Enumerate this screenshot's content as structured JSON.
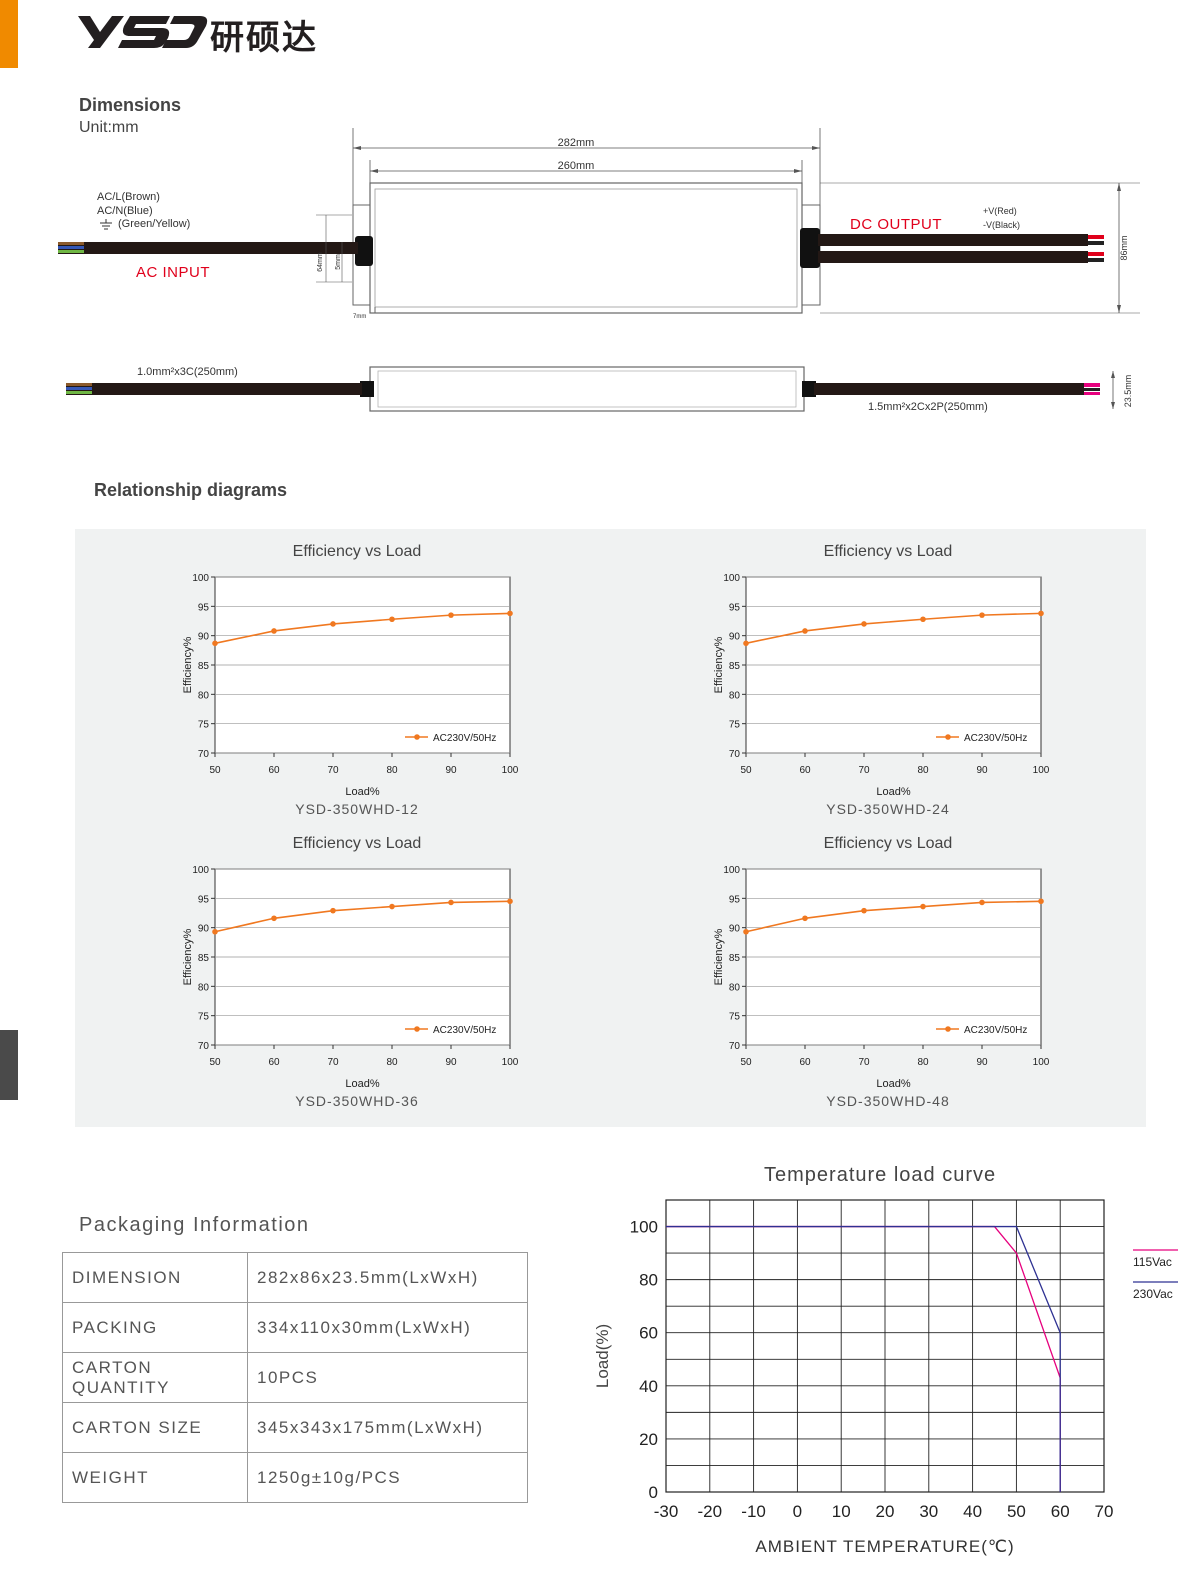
{
  "header": {
    "logo_text": "YSD",
    "brand_cn": "研硕达"
  },
  "dimensions": {
    "title": "Dimensions",
    "unit": "Unit:mm",
    "len_outer": "282mm",
    "len_inner": "260mm",
    "ac_wires": [
      "AC/L(Brown)",
      "AC/N(Blue)",
      "(Green/Yellow)"
    ],
    "ac_label": "AC INPUT",
    "dc_label": "DC OUTPUT",
    "dc_wires": [
      "+V(Red)",
      "-V(Black)"
    ],
    "height": "86mm",
    "mount_h1": "64mm",
    "mount_h2": "5mm",
    "mount_w": "7mm",
    "side_in_cable": "1.0mm²x3C(250mm)",
    "side_out_cable": "1.5mm²x2Cx2P(250mm)",
    "thickness": "23.5mm"
  },
  "relationship": {
    "title": "Relationship diagrams"
  },
  "chart_data": [
    {
      "type": "line",
      "title": "Efficiency vs Load",
      "model": "YSD-350WHD-12",
      "xlabel": "Load%",
      "ylabel": "Efficiency%",
      "x": [
        50,
        60,
        70,
        80,
        90,
        100
      ],
      "xlim": [
        50,
        100
      ],
      "ylim": [
        70,
        100
      ],
      "yticks": [
        70,
        75,
        80,
        85,
        90,
        95,
        100
      ],
      "series": [
        {
          "name": "AC230V/50Hz",
          "color": "#f07820",
          "values": [
            88.7,
            90.8,
            92.0,
            92.8,
            93.5,
            93.8
          ]
        }
      ]
    },
    {
      "type": "line",
      "title": "Efficiency vs Load",
      "model": "YSD-350WHD-24",
      "xlabel": "Load%",
      "ylabel": "Efficiency%",
      "x": [
        50,
        60,
        70,
        80,
        90,
        100
      ],
      "xlim": [
        50,
        100
      ],
      "ylim": [
        70,
        100
      ],
      "yticks": [
        70,
        75,
        80,
        85,
        90,
        95,
        100
      ],
      "series": [
        {
          "name": "AC230V/50Hz",
          "color": "#f07820",
          "values": [
            88.7,
            90.8,
            92.0,
            92.8,
            93.5,
            93.8
          ]
        }
      ]
    },
    {
      "type": "line",
      "title": "Efficiency vs Load",
      "model": "YSD-350WHD-36",
      "xlabel": "Load%",
      "ylabel": "Efficiency%",
      "x": [
        50,
        60,
        70,
        80,
        90,
        100
      ],
      "xlim": [
        50,
        100
      ],
      "ylim": [
        70,
        100
      ],
      "yticks": [
        70,
        75,
        80,
        85,
        90,
        95,
        100
      ],
      "series": [
        {
          "name": "AC230V/50Hz",
          "color": "#f07820",
          "values": [
            89.3,
            91.6,
            92.9,
            93.6,
            94.3,
            94.5
          ]
        }
      ]
    },
    {
      "type": "line",
      "title": "Efficiency vs Load",
      "model": "YSD-350WHD-48",
      "xlabel": "Load%",
      "ylabel": "Efficiency%",
      "x": [
        50,
        60,
        70,
        80,
        90,
        100
      ],
      "xlim": [
        50,
        100
      ],
      "ylim": [
        70,
        100
      ],
      "yticks": [
        70,
        75,
        80,
        85,
        90,
        95,
        100
      ],
      "series": [
        {
          "name": "AC230V/50Hz",
          "color": "#f07820",
          "values": [
            89.3,
            91.6,
            92.9,
            93.6,
            94.3,
            94.5
          ]
        }
      ]
    },
    {
      "type": "line",
      "title": "Temperature load curve",
      "xlabel": "AMBIENT TEMPERATURE(℃)",
      "ylabel": "Load(%)",
      "xticks": [
        -30,
        -20,
        -10,
        0,
        10,
        20,
        30,
        40,
        50,
        60,
        70
      ],
      "xlim": [
        -30,
        70
      ],
      "yticks": [
        0,
        20,
        40,
        60,
        80,
        100
      ],
      "ylim": [
        0,
        110
      ],
      "series": [
        {
          "name": "115Vac",
          "color": "#e6007e",
          "points": [
            [
              -30,
              100
            ],
            [
              45,
              100
            ],
            [
              50,
              90
            ],
            [
              60,
              43
            ],
            [
              60,
              0
            ]
          ]
        },
        {
          "name": "230Vac",
          "color": "#2e3192",
          "points": [
            [
              -30,
              100
            ],
            [
              50,
              100
            ],
            [
              60,
              60
            ],
            [
              60,
              0
            ]
          ]
        }
      ]
    }
  ],
  "packaging": {
    "title": "Packaging Information",
    "rows": [
      {
        "key": "DIMENSION",
        "value": "282x86x23.5mm(LxWxH)"
      },
      {
        "key": "PACKING",
        "value": "334x110x30mm(LxWxH)"
      },
      {
        "key": "CARTON QUANTITY",
        "value": "10PCS"
      },
      {
        "key": "CARTON SIZE",
        "value": "345x343x175mm(LxWxH)"
      },
      {
        "key": "WEIGHT",
        "value": "1250g±10g/PCS"
      }
    ]
  },
  "colors": {
    "accent": "#f08a00",
    "dark_bar": "#4a4a4a",
    "ac_red": "#e0001b",
    "chart_orange": "#f07820"
  }
}
